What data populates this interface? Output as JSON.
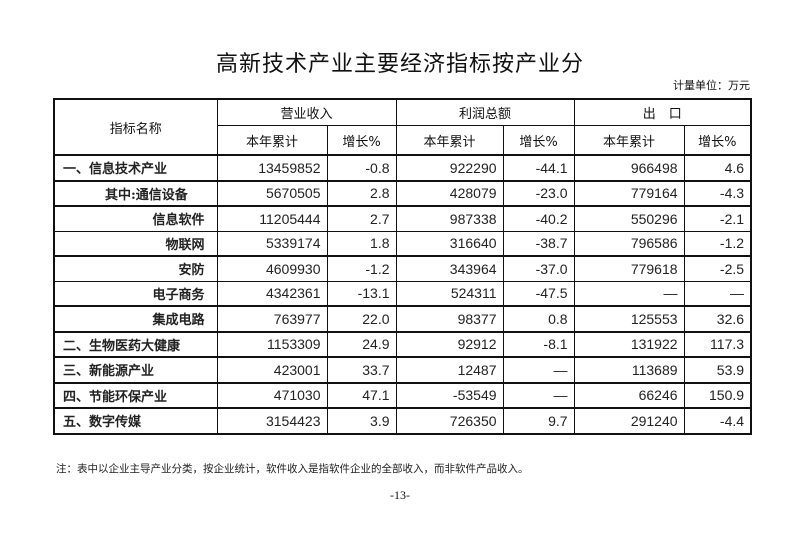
{
  "title": "高新技术产业主要经济指标按产业分",
  "unit": "计量单位：万元",
  "header": {
    "name": "指标名称",
    "groups": [
      "营业收入",
      "利润总额",
      "出　口"
    ],
    "sub_total": "本年累计",
    "sub_growth": "增长%"
  },
  "rows": [
    {
      "name": "一、信息技术产业",
      "level": 1,
      "values": [
        "13459852",
        "-0.8",
        "922290",
        "-44.1",
        "966498",
        "4.6"
      ]
    },
    {
      "name": "其中:通信设备",
      "level": 2,
      "values": [
        "5670505",
        "2.8",
        "428079",
        "-23.0",
        "779164",
        "-4.3"
      ]
    },
    {
      "name": "信息软件",
      "level": 3,
      "values": [
        "11205444",
        "2.7",
        "987338",
        "-40.2",
        "550296",
        "-2.1"
      ]
    },
    {
      "name": "物联网",
      "level": 3,
      "values": [
        "5339174",
        "1.8",
        "316640",
        "-38.7",
        "796586",
        "-1.2"
      ]
    },
    {
      "name": "安防",
      "level": 3,
      "values": [
        "4609930",
        "-1.2",
        "343964",
        "-37.0",
        "779618",
        "-2.5"
      ]
    },
    {
      "name": "电子商务",
      "level": 3,
      "values": [
        "4342361",
        "-13.1",
        "524311",
        "-47.5",
        "—",
        "—"
      ]
    },
    {
      "name": "集成电路",
      "level": 3,
      "values": [
        "763977",
        "22.0",
        "98377",
        "0.8",
        "125553",
        "32.6"
      ]
    },
    {
      "name": "二、生物医药大健康",
      "level": 1,
      "values": [
        "1153309",
        "24.9",
        "92912",
        "-8.1",
        "131922",
        "117.3"
      ]
    },
    {
      "name": "三、新能源产业",
      "level": 1,
      "values": [
        "423001",
        "33.7",
        "12487",
        "—",
        "113689",
        "53.9"
      ]
    },
    {
      "name": "四、节能环保产业",
      "level": 1,
      "values": [
        "471030",
        "47.1",
        "-53549",
        "—",
        "66246",
        "150.9"
      ]
    },
    {
      "name": "五、数字传媒",
      "level": 1,
      "values": [
        "3154423",
        "3.9",
        "726350",
        "9.7",
        "291240",
        "-4.4"
      ]
    }
  ],
  "note": "注：表中以企业主导产业分类，按企业统计，软件收入是指软件企业的全部收入，而非软件产品收入。",
  "page_number": "-13-"
}
